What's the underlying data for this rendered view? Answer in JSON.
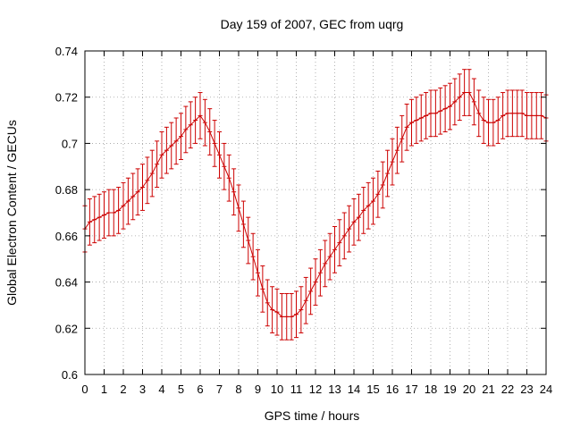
{
  "chart_data": {
    "type": "line",
    "title": "Day 159 of 2007, GEC from uqrg",
    "xlabel": "GPS time / hours",
    "ylabel": "Global Electron Content / GECUs",
    "xlim": [
      0,
      24
    ],
    "ylim": [
      0.6,
      0.74
    ],
    "xticks": [
      0,
      1,
      2,
      3,
      4,
      5,
      6,
      7,
      8,
      9,
      10,
      11,
      12,
      13,
      14,
      15,
      16,
      17,
      18,
      19,
      20,
      21,
      22,
      23,
      24
    ],
    "yticks": [
      0.6,
      0.62,
      0.64,
      0.66,
      0.68,
      0.7,
      0.72,
      0.74
    ],
    "ytick_labels": [
      "0.6",
      "0.62",
      "0.64",
      "0.66",
      "0.68",
      "0.7",
      "0.72",
      "0.74"
    ],
    "grid": true,
    "series_color": "#cc0000",
    "series": [
      {
        "x": [
          0,
          0.25,
          0.5,
          0.75,
          1,
          1.25,
          1.5,
          1.75,
          2,
          2.25,
          2.5,
          2.75,
          3,
          3.25,
          3.5,
          3.75,
          4,
          4.25,
          4.5,
          4.75,
          5,
          5.25,
          5.5,
          5.75,
          6,
          6.25,
          6.5,
          6.75,
          7,
          7.25,
          7.5,
          7.75,
          8,
          8.25,
          8.5,
          8.75,
          9,
          9.25,
          9.5,
          9.75,
          10,
          10.25,
          10.5,
          10.75,
          11,
          11.25,
          11.5,
          11.75,
          12,
          12.25,
          12.5,
          12.75,
          13,
          13.25,
          13.5,
          13.75,
          14,
          14.25,
          14.5,
          14.75,
          15,
          15.25,
          15.5,
          15.75,
          16,
          16.25,
          16.5,
          16.75,
          17,
          17.25,
          17.5,
          17.75,
          18,
          18.25,
          18.5,
          18.75,
          19,
          19.25,
          19.5,
          19.75,
          20,
          20.25,
          20.5,
          20.75,
          21,
          21.25,
          21.5,
          21.75,
          22,
          22.25,
          22.5,
          22.75,
          23,
          23.25,
          23.5,
          23.75,
          24
        ],
        "y": [
          0.663,
          0.666,
          0.667,
          0.668,
          0.669,
          0.67,
          0.67,
          0.671,
          0.673,
          0.675,
          0.677,
          0.679,
          0.681,
          0.684,
          0.687,
          0.691,
          0.695,
          0.697,
          0.699,
          0.701,
          0.703,
          0.706,
          0.708,
          0.71,
          0.712,
          0.709,
          0.705,
          0.7,
          0.695,
          0.69,
          0.685,
          0.679,
          0.672,
          0.665,
          0.658,
          0.651,
          0.644,
          0.637,
          0.631,
          0.628,
          0.627,
          0.625,
          0.625,
          0.625,
          0.626,
          0.628,
          0.632,
          0.636,
          0.64,
          0.644,
          0.648,
          0.651,
          0.654,
          0.657,
          0.66,
          0.663,
          0.666,
          0.668,
          0.671,
          0.673,
          0.675,
          0.678,
          0.682,
          0.687,
          0.692,
          0.697,
          0.702,
          0.707,
          0.709,
          0.71,
          0.711,
          0.712,
          0.713,
          0.713,
          0.714,
          0.715,
          0.716,
          0.718,
          0.72,
          0.722,
          0.722,
          0.718,
          0.713,
          0.71,
          0.709,
          0.709,
          0.71,
          0.712,
          0.713,
          0.713,
          0.713,
          0.713,
          0.712,
          0.712,
          0.712,
          0.712,
          0.711
        ],
        "error": 0.01
      }
    ]
  }
}
